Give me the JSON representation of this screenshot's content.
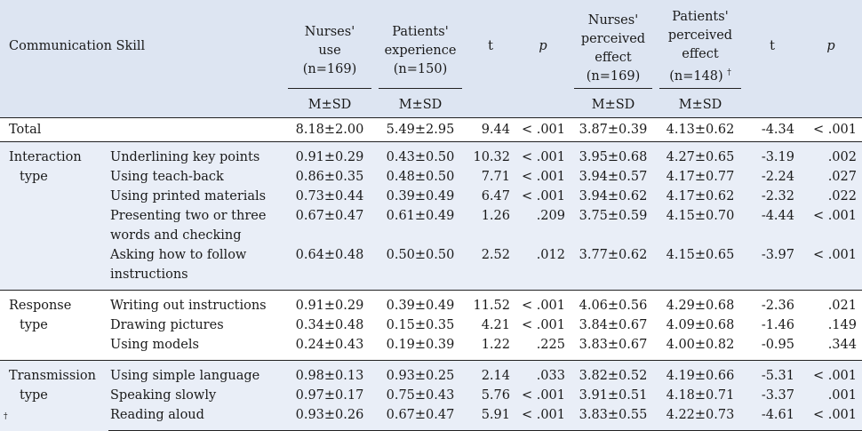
{
  "header": {
    "communication_skill": "Communication Skill",
    "nurses_use": [
      "Nurses'",
      "use",
      "(n=169)"
    ],
    "patients_experience": [
      "Patients'",
      "experience",
      "(n=150)"
    ],
    "t1": "t",
    "p1": "p",
    "nurses_effect": [
      "Nurses'",
      "perceived",
      "effect",
      "(n=169)"
    ],
    "patients_effect": [
      "Patients'",
      "perceived",
      "effect",
      "(n=148)"
    ],
    "patients_effect_mark": "†",
    "t2": "t",
    "p2": "p",
    "msd": "M±SD"
  },
  "total": {
    "label": "Total",
    "cells": [
      "8.18±2.00",
      "5.49±2.95",
      "9.44",
      "< .001",
      "3.87±0.39",
      "4.13±0.62",
      "-4.34",
      "< .001"
    ]
  },
  "groups": [
    {
      "name": [
        "Interaction",
        "type"
      ],
      "rows": [
        {
          "item": [
            "Underlining key points"
          ],
          "cells": [
            "0.91±0.29",
            "0.43±0.50",
            "10.32",
            "< .001",
            "3.95±0.68",
            "4.27±0.65",
            "-3.19",
            ".002"
          ]
        },
        {
          "item": [
            "Using teach-back"
          ],
          "cells": [
            "0.86±0.35",
            "0.48±0.50",
            "7.71",
            "< .001",
            "3.94±0.57",
            "4.17±0.77",
            "-2.24",
            ".027"
          ]
        },
        {
          "item": [
            "Using printed materials"
          ],
          "cells": [
            "0.73±0.44",
            "0.39±0.49",
            "6.47",
            "< .001",
            "3.94±0.62",
            "4.17±0.62",
            "-2.32",
            ".022"
          ]
        },
        {
          "item": [
            "Presenting two or three",
            "words and checking"
          ],
          "cells": [
            "0.67±0.47",
            "0.61±0.49",
            "1.26",
            ".209",
            "3.75±0.59",
            "4.15±0.70",
            "-4.44",
            "< .001"
          ]
        },
        {
          "item": [
            "Asking how to follow",
            "instructions"
          ],
          "cells": [
            "0.64±0.48",
            "0.50±0.50",
            "2.52",
            ".012",
            "3.77±0.62",
            "4.15±0.65",
            "-3.97",
            "< .001"
          ]
        }
      ]
    },
    {
      "name": [
        "Response",
        "type"
      ],
      "rows": [
        {
          "item": [
            "Writing out instructions"
          ],
          "cells": [
            "0.91±0.29",
            "0.39±0.49",
            "11.52",
            "< .001",
            "4.06±0.56",
            "4.29±0.68",
            "-2.36",
            ".021"
          ]
        },
        {
          "item": [
            "Drawing pictures"
          ],
          "cells": [
            "0.34±0.48",
            "0.15±0.35",
            "4.21",
            "< .001",
            "3.84±0.67",
            "4.09±0.68",
            "-1.46",
            ".149"
          ]
        },
        {
          "item": [
            "Using models"
          ],
          "cells": [
            "0.24±0.43",
            "0.19±0.39",
            "1.22",
            ".225",
            "3.83±0.67",
            "4.00±0.82",
            "-0.95",
            ".344"
          ]
        }
      ]
    },
    {
      "name": [
        "Transmission",
        "type"
      ],
      "rows": [
        {
          "item": [
            "Using simple language"
          ],
          "cells": [
            "0.98±0.13",
            "0.93±0.25",
            "2.14",
            ".033",
            "3.82±0.52",
            "4.19±0.66",
            "-5.31",
            "< .001"
          ]
        },
        {
          "item": [
            "Speaking slowly"
          ],
          "cells": [
            "0.97±0.17",
            "0.75±0.43",
            "5.76",
            "< .001",
            "3.91±0.51",
            "4.18±0.71",
            "-3.37",
            ".001"
          ]
        },
        {
          "item": [
            "Reading aloud"
          ],
          "cells": [
            "0.93±0.26",
            "0.67±0.47",
            "5.91",
            "< .001",
            "3.83±0.55",
            "4.22±0.73",
            "-4.61",
            "< .001"
          ]
        }
      ]
    }
  ],
  "footnote": "†"
}
